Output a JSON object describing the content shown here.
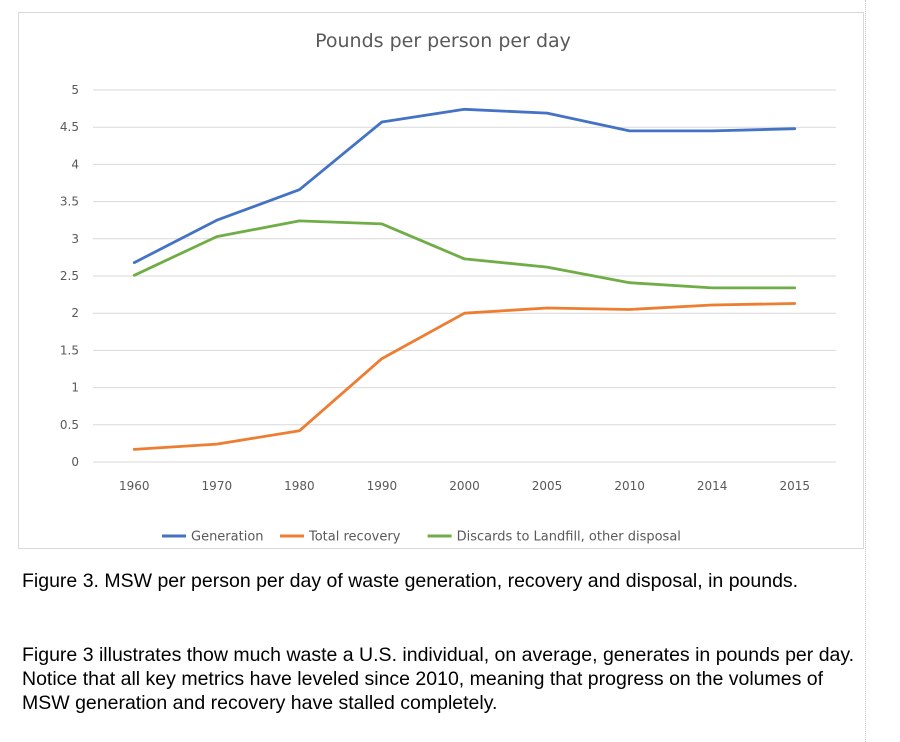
{
  "chart_data": {
    "type": "line",
    "title": "Pounds per person per day",
    "xlabel": "",
    "ylabel": "",
    "categories": [
      "1960",
      "1970",
      "1980",
      "1990",
      "2000",
      "2005",
      "2010",
      "2014",
      "2015"
    ],
    "ylim": [
      0,
      5
    ],
    "yticks": [
      "0",
      "0.5",
      "1",
      "1.5",
      "2",
      "2.5",
      "3",
      "3.5",
      "4",
      "4.5",
      "5"
    ],
    "grid": true,
    "legend_position": "bottom",
    "series": [
      {
        "name": "Generation",
        "color": "#4472C4",
        "values": [
          2.68,
          3.25,
          3.66,
          4.57,
          4.74,
          4.69,
          4.45,
          4.45,
          4.48
        ]
      },
      {
        "name": "Total recovery",
        "color": "#ED7D31",
        "values": [
          0.17,
          0.24,
          0.42,
          1.39,
          2.0,
          2.07,
          2.05,
          2.11,
          2.13
        ]
      },
      {
        "name": "Discards to Landfill, other disposal",
        "color": "#70AD47",
        "values": [
          2.51,
          3.03,
          3.24,
          3.2,
          2.73,
          2.62,
          2.41,
          2.34,
          2.34
        ]
      }
    ]
  },
  "caption": {
    "title": "Figure 3. MSW per person per day of waste generation, recovery and disposal, in pounds.",
    "body": "Figure 3 illustrates thow much waste a U.S. individual, on average, generates in pounds per day. Notice that all key metrics have leveled since 2010, meaning that progress on the volumes of MSW generation and recovery have stalled completely."
  }
}
